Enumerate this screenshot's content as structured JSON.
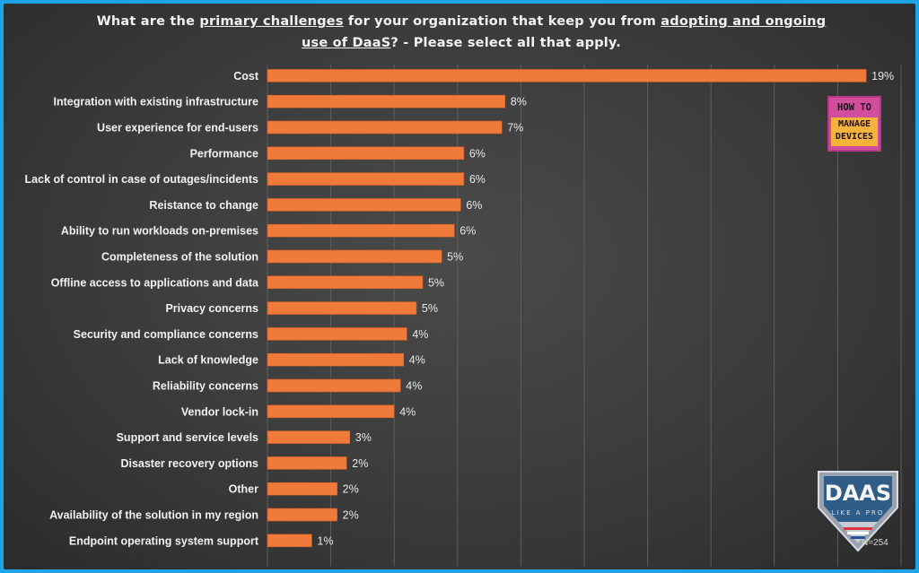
{
  "title": {
    "part1": "What are the ",
    "u1": "primary challenges",
    "part2": " for your organization that keep you from ",
    "u2": "adopting and ongoing",
    "u3": "use of DaaS",
    "part3": "? - Please select all that apply."
  },
  "chart_data": {
    "type": "bar",
    "orientation": "horizontal",
    "categories": [
      "Cost",
      "Integration with existing infrastructure",
      "User experience for end-users",
      "Performance",
      "Lack of control in case of outages/incidents",
      "Reistance to change",
      "Ability to run workloads on-premises",
      "Completeness of the solution",
      "Offline access to applications and data",
      "Privacy concerns",
      "Security and compliance concerns",
      "Lack of knowledge",
      "Reliability concerns",
      "Vendor lock-in",
      "Support and service levels",
      "Disaster recovery options",
      "Other",
      "Availability of the solution in my region",
      "Endpoint operating system support"
    ],
    "values": [
      18.9,
      7.5,
      7.4,
      6.2,
      6.2,
      6.1,
      5.9,
      5.5,
      4.9,
      4.7,
      4.4,
      4.3,
      4.2,
      4.0,
      2.6,
      2.5,
      2.2,
      2.2,
      1.4
    ],
    "data_labels": [
      "19%",
      "8%",
      "7%",
      "6%",
      "6%",
      "6%",
      "6%",
      "5%",
      "5%",
      "5%",
      "4%",
      "4%",
      "4%",
      "4%",
      "3%",
      "2%",
      "2%",
      "2%",
      "1%"
    ],
    "xlim": [
      0,
      20
    ],
    "x_ticks": [
      "0%",
      "2%",
      "4%",
      "6%",
      "8%",
      "10%",
      "12%",
      "14%",
      "16%",
      "18%",
      "20%"
    ],
    "grid": true,
    "bar_color": "#f07a3a",
    "sample_size_label": "N=254"
  },
  "logos": {
    "htmd": {
      "line1": "HOW TO",
      "line2": "MANAGE",
      "line3": "DEVICES"
    },
    "daas": {
      "main": "DAAS",
      "sub": "LIKE A PRO"
    }
  },
  "colors": {
    "frame": "#1fa3e8",
    "background": "#3d3d3d",
    "htmd_pink": "#d04e9b",
    "htmd_orange": "#f6b33a"
  }
}
